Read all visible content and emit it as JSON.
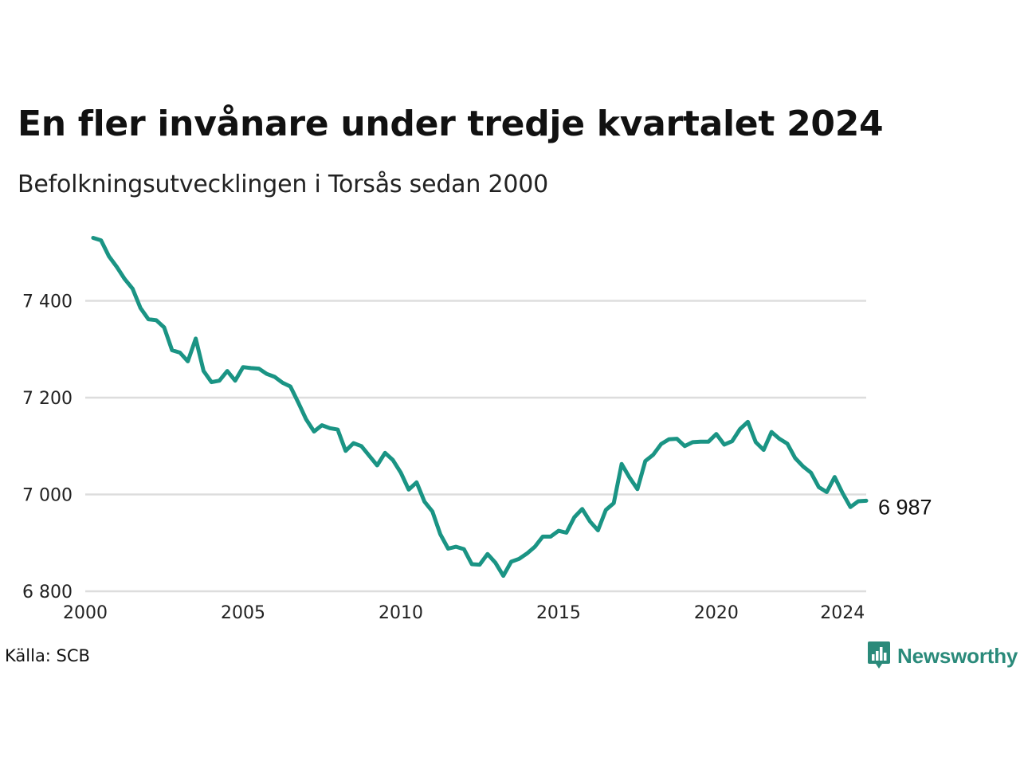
{
  "header": {
    "title": "En fler invånare under tredje kvartalet 2024",
    "subtitle": "Befolkningsutvecklingen i Torsås sedan 2000"
  },
  "footer": {
    "source": "Källa: SCB",
    "brand": "Newsworthy",
    "brand_icon": "bar-chart-speech-bubble-icon"
  },
  "colors": {
    "line": "#1a9484",
    "grid": "#dddddd",
    "brand": "#2a8a7a"
  },
  "chart_data": {
    "type": "line",
    "title": "En fler invånare under tredje kvartalet 2024",
    "subtitle": "Befolkningsutvecklingen i Torsås sedan 2000",
    "xlabel": "",
    "ylabel": "",
    "xlim": [
      2000,
      2024.75
    ],
    "ylim": [
      6800,
      7600
    ],
    "xticks": [
      2000,
      2005,
      2010,
      2015,
      2020,
      2024
    ],
    "yticks": [
      6800,
      7000,
      7200,
      7400
    ],
    "ytick_labels": [
      "6 800",
      "7 000",
      "7 200",
      "7 400"
    ],
    "grid": "horizontal",
    "end_label": "6 987",
    "series": [
      {
        "x": [
          2000.25,
          2000.5,
          2000.75,
          2001,
          2001.25,
          2001.5,
          2001.75,
          2002,
          2002.25,
          2002.5,
          2002.75,
          2003,
          2003.25,
          2003.5,
          2003.75,
          2004,
          2004.25,
          2004.5,
          2004.75,
          2005,
          2005.25,
          2005.5,
          2005.75,
          2006,
          2006.25,
          2006.5,
          2006.75,
          2007,
          2007.25,
          2007.5,
          2007.75,
          2008,
          2008.25,
          2008.5,
          2008.75,
          2009,
          2009.25,
          2009.5,
          2009.75,
          2010,
          2010.25,
          2010.5,
          2010.75,
          2011,
          2011.25,
          2011.5,
          2011.75,
          2012,
          2012.25,
          2012.5,
          2012.75,
          2013,
          2013.25,
          2013.5,
          2013.75,
          2014,
          2014.25,
          2014.5,
          2014.75,
          2015,
          2015.25,
          2015.5,
          2015.75,
          2016,
          2016.25,
          2016.5,
          2016.75,
          2017,
          2017.25,
          2017.5,
          2017.75,
          2018,
          2018.25,
          2018.5,
          2018.75,
          2019,
          2019.25,
          2019.5,
          2019.75,
          2020,
          2020.25,
          2020.5,
          2020.75,
          2021,
          2021.25,
          2021.5,
          2021.75,
          2022,
          2022.25,
          2022.5,
          2022.75,
          2023,
          2023.25,
          2023.5,
          2023.75,
          2024,
          2024.25,
          2024.5,
          2024.75
        ],
        "values": [
          7530,
          7525,
          7492,
          7470,
          7445,
          7425,
          7385,
          7362,
          7360,
          7345,
          7298,
          7293,
          7275,
          7322,
          7255,
          7232,
          7235,
          7255,
          7235,
          7263,
          7261,
          7260,
          7249,
          7243,
          7231,
          7223,
          7190,
          7155,
          7130,
          7143,
          7137,
          7134,
          7090,
          7106,
          7100,
          7080,
          7060,
          7086,
          7071,
          7045,
          7010,
          7025,
          6985,
          6965,
          6918,
          6888,
          6892,
          6887,
          6856,
          6855,
          6877,
          6859,
          6832,
          6861,
          6867,
          6878,
          6892,
          6913,
          6913,
          6925,
          6921,
          6953,
          6970,
          6944,
          6926,
          6968,
          6982,
          7063,
          7035,
          7011,
          7069,
          7082,
          7104,
          7114,
          7115,
          7100,
          7108,
          7109,
          7109,
          7125,
          7103,
          7110,
          7135,
          7150,
          7108,
          7092,
          7129,
          7115,
          7105,
          7075,
          7058,
          7045,
          7015,
          7005,
          7036,
          7003,
          6974,
          6986,
          6987
        ]
      }
    ]
  }
}
